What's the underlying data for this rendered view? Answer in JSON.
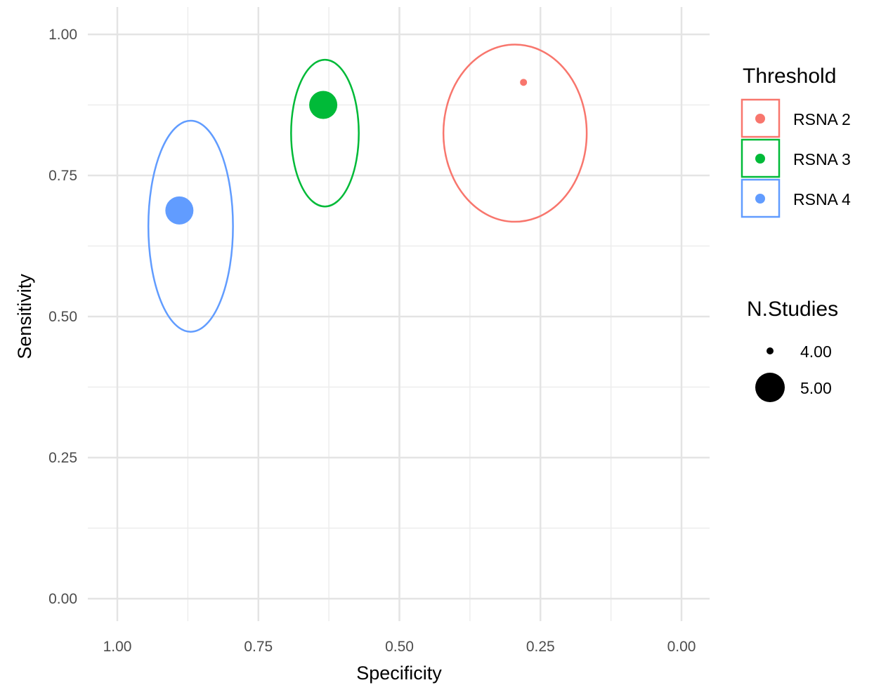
{
  "chart_data": {
    "type": "scatter",
    "xlabel": "Specificity",
    "ylabel": "Sensitivity",
    "xlim": [
      1.0,
      0.0
    ],
    "ylim": [
      0.0,
      1.0
    ],
    "x_reversed": true,
    "grid": true,
    "x_ticks": [
      "1.00",
      "0.75",
      "0.50",
      "0.25",
      "0.00"
    ],
    "x_tick_values": [
      1.0,
      0.75,
      0.5,
      0.25,
      0.0
    ],
    "y_ticks": [
      "0.00",
      "0.25",
      "0.50",
      "0.75",
      "1.00"
    ],
    "y_tick_values": [
      0.0,
      0.25,
      0.5,
      0.75,
      1.0
    ],
    "legend_placement": "right",
    "color_legend": {
      "title": "Threshold",
      "entries": [
        {
          "label": "RSNA 2",
          "color": "#F8766D"
        },
        {
          "label": "RSNA 3",
          "color": "#00BA38"
        },
        {
          "label": "RSNA 4",
          "color": "#619CFF"
        }
      ]
    },
    "size_legend": {
      "title": "N.Studies",
      "entries": [
        {
          "label": "4.00",
          "value": 4.0
        },
        {
          "label": "5.00",
          "value": 5.0
        }
      ]
    },
    "series": [
      {
        "name": "RSNA 2",
        "color": "#F8766D",
        "specificity": 0.28,
        "sensitivity": 0.915,
        "n_studies": 4,
        "ellipse": {
          "spec_center": 0.295,
          "sens_center": 0.825,
          "spec_halfwidth": 0.127,
          "sens_halfheight": 0.157
        }
      },
      {
        "name": "RSNA 3",
        "color": "#00BA38",
        "specificity": 0.635,
        "sensitivity": 0.875,
        "n_studies": 5,
        "ellipse": {
          "spec_center": 0.632,
          "sens_center": 0.825,
          "spec_halfwidth": 0.06,
          "sens_halfheight": 0.13
        }
      },
      {
        "name": "RSNA 4",
        "color": "#619CFF",
        "specificity": 0.89,
        "sensitivity": 0.688,
        "n_studies": 5,
        "ellipse": {
          "spec_center": 0.87,
          "sens_center": 0.66,
          "spec_halfwidth": 0.075,
          "sens_halfheight": 0.187
        }
      }
    ]
  }
}
